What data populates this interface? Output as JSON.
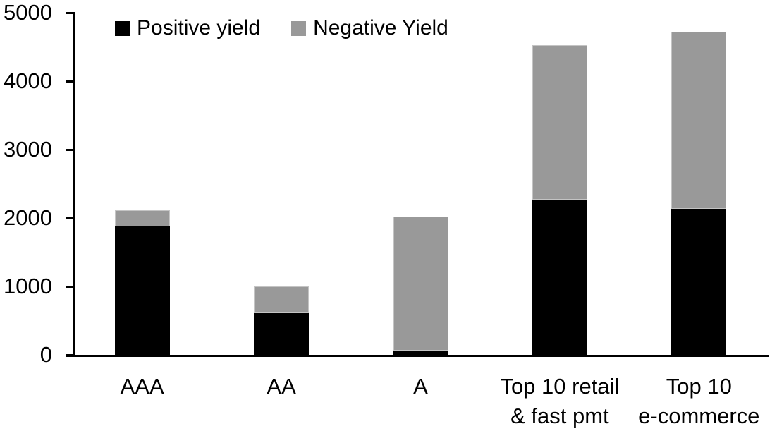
{
  "chart_data": {
    "type": "bar",
    "stacked": true,
    "title": "",
    "xlabel": "",
    "ylabel": "",
    "categories": [
      [
        "AAA"
      ],
      [
        "AA"
      ],
      [
        "A"
      ],
      [
        "Top 10 retail",
        "& fast pmt"
      ],
      [
        "Top 10",
        "e-commerce"
      ]
    ],
    "series": [
      {
        "name": "Positive yield",
        "color": "#000000",
        "values": [
          1880,
          620,
          60,
          2265,
          2135
        ]
      },
      {
        "name": "Negative Yield",
        "color": "#999999",
        "values": [
          230,
          380,
          1960,
          2260,
          2585
        ]
      }
    ],
    "totals": [
      2110,
      1000,
      2020,
      4525,
      4720
    ],
    "ylim": [
      0,
      5000
    ],
    "yticks": [
      0,
      1000,
      2000,
      3000,
      4000,
      5000
    ],
    "legend_position": "top",
    "grid": false,
    "axis_color": "#000000",
    "background_color": "#ffffff"
  }
}
